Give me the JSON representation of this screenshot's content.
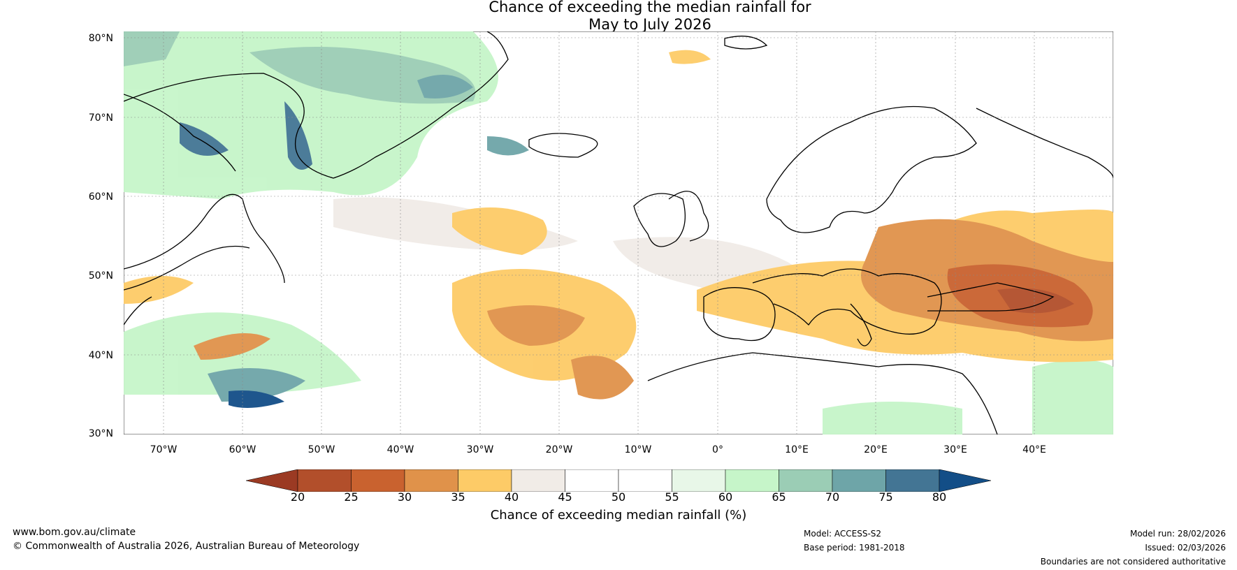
{
  "title": {
    "line1": "Chance of exceeding the median rainfall for",
    "line2": "May to July 2026"
  },
  "map": {
    "lat_labels": [
      "80°N",
      "70°N",
      "60°N",
      "50°N",
      "40°N",
      "30°N"
    ],
    "lon_labels": [
      "70°W",
      "60°W",
      "50°W",
      "40°W",
      "30°W",
      "20°W",
      "10°W",
      "0°",
      "10°E",
      "20°E",
      "30°E",
      "40°E"
    ],
    "lat_range": [
      30,
      81
    ],
    "lon_range": [
      -75,
      50
    ]
  },
  "colorbar": {
    "ticks": [
      "20",
      "25",
      "30",
      "35",
      "40",
      "45",
      "50",
      "55",
      "60",
      "65",
      "70",
      "75",
      "80"
    ],
    "colors": [
      "#b24f2b",
      "#c9622f",
      "#e0924a",
      "#fdcb67",
      "#f1ece7",
      "#ffffff",
      "#ffffff",
      "#e8f7e8",
      "#c6f5c9",
      "#9bcdb5",
      "#6ea5a8",
      "#437594"
    ],
    "under_color": "#9b3a23",
    "over_color": "#134e87",
    "label": "Chance of exceeding median rainfall (%)"
  },
  "footer": {
    "website": "www.bom.gov.au/climate",
    "copyright": "© Commonwealth of Australia 2026, Australian Bureau of Meteorology",
    "model": "Model: ACCESS-S2",
    "base_period": "Base period: 1981-2018",
    "model_run": "Model run: 28/02/2026",
    "issued": "Issued: 02/03/2026",
    "disclaimer": "Boundaries are not considered authoritative"
  }
}
